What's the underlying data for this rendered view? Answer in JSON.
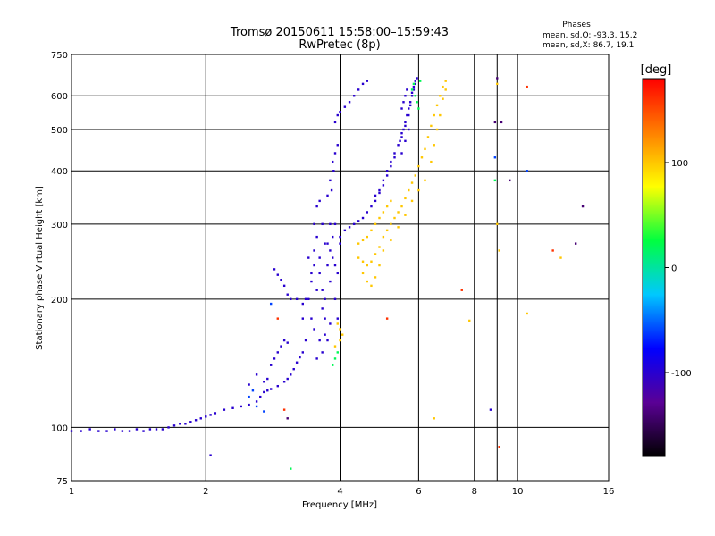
{
  "chart_data": {
    "type": "scatter",
    "title": "Tromsø 20150611 15:58:00–15:59:43",
    "subtitle": "RwPretec (8p)",
    "xlabel": "Frequency [MHz]",
    "ylabel": "Stationary phase Virtual Height [km]",
    "x_scale": "log",
    "y_scale": "log",
    "xlim": [
      1,
      16
    ],
    "ylim": [
      75,
      750
    ],
    "x_ticks": [
      "1",
      "2",
      "4",
      "6",
      "8",
      "10",
      "16"
    ],
    "x_tick_values": [
      1,
      2,
      4,
      6,
      8,
      10,
      16
    ],
    "x_minor_gridlines": [
      9
    ],
    "y_ticks": [
      "75",
      "100",
      "200",
      "300",
      "400",
      "500",
      "600",
      "750"
    ],
    "y_tick_values": [
      75,
      100,
      200,
      300,
      400,
      500,
      600,
      750
    ],
    "grid": true,
    "stats": {
      "title": "Phases",
      "line_o": "mean, sd,O: -93.3, 15.2",
      "line_x": "mean, sd,X:  86.7, 19.1"
    },
    "colorbar": {
      "label": "[deg]",
      "range": [
        -180,
        180
      ],
      "ticks": [
        "100",
        "0",
        "-100"
      ],
      "tick_values": [
        100,
        0,
        -100
      ],
      "colors": [
        "#000000",
        "#5a0095",
        "#0000ff",
        "#00c8ff",
        "#00ff40",
        "#ffff00",
        "#ff8000",
        "#ff0000"
      ]
    },
    "series": [
      {
        "phase": -100,
        "points": [
          [
            1.0,
            98
          ],
          [
            1.05,
            98
          ],
          [
            1.1,
            99
          ],
          [
            1.15,
            98
          ],
          [
            1.2,
            98
          ],
          [
            1.25,
            99
          ],
          [
            1.3,
            98
          ],
          [
            1.35,
            98
          ],
          [
            1.4,
            99
          ],
          [
            1.45,
            98
          ],
          [
            1.5,
            99
          ],
          [
            1.55,
            99
          ],
          [
            1.6,
            99
          ],
          [
            1.65,
            100
          ],
          [
            1.7,
            101
          ],
          [
            1.75,
            102
          ],
          [
            1.8,
            102
          ],
          [
            1.85,
            103
          ],
          [
            1.9,
            104
          ],
          [
            1.95,
            105
          ],
          [
            2.0,
            106
          ],
          [
            2.05,
            107
          ],
          [
            2.1,
            108
          ],
          [
            2.2,
            110
          ],
          [
            2.3,
            111
          ],
          [
            2.4,
            112
          ],
          [
            2.5,
            113
          ],
          [
            2.6,
            115
          ],
          [
            2.65,
            118
          ],
          [
            2.7,
            121
          ],
          [
            2.75,
            122
          ],
          [
            2.8,
            123
          ],
          [
            2.9,
            125
          ],
          [
            3.0,
            128
          ],
          [
            3.05,
            130
          ],
          [
            3.1,
            133
          ],
          [
            3.15,
            137
          ],
          [
            3.2,
            142
          ],
          [
            3.25,
            146
          ],
          [
            3.3,
            150
          ],
          [
            2.9,
            150
          ],
          [
            2.95,
            155
          ],
          [
            3.0,
            160
          ],
          [
            3.05,
            158
          ],
          [
            2.85,
            145
          ],
          [
            2.8,
            140
          ],
          [
            2.75,
            130
          ],
          [
            2.7,
            128
          ],
          [
            2.6,
            133
          ],
          [
            2.5,
            126
          ],
          [
            3.4,
            200
          ],
          [
            3.45,
            220
          ],
          [
            3.5,
            260
          ],
          [
            3.5,
            300
          ],
          [
            3.55,
            330
          ],
          [
            3.55,
            280
          ],
          [
            3.6,
            250
          ],
          [
            3.6,
            230
          ],
          [
            3.65,
            210
          ],
          [
            3.65,
            190
          ],
          [
            3.7,
            180
          ],
          [
            3.7,
            200
          ],
          [
            3.75,
            240
          ],
          [
            3.75,
            270
          ],
          [
            3.8,
            300
          ],
          [
            3.8,
            220
          ],
          [
            3.85,
            250
          ],
          [
            3.85,
            280
          ],
          [
            3.9,
            300
          ],
          [
            3.9,
            200
          ],
          [
            3.95,
            230
          ],
          [
            3.95,
            180
          ],
          [
            3.6,
            160
          ],
          [
            3.65,
            150
          ],
          [
            3.55,
            145
          ],
          [
            3.5,
            170
          ],
          [
            3.45,
            180
          ],
          [
            3.7,
            165
          ],
          [
            3.8,
            175
          ],
          [
            3.75,
            160
          ],
          [
            3.6,
            340
          ],
          [
            3.65,
            300
          ],
          [
            3.7,
            270
          ],
          [
            3.8,
            260
          ],
          [
            3.5,
            240
          ],
          [
            3.55,
            210
          ],
          [
            3.45,
            230
          ],
          [
            3.4,
            250
          ],
          [
            3.35,
            200
          ],
          [
            3.3,
            180
          ],
          [
            3.35,
            160
          ],
          [
            3.9,
            240
          ],
          [
            4.0,
            270
          ],
          [
            3.75,
            350
          ],
          [
            3.8,
            380
          ],
          [
            3.85,
            420
          ],
          [
            3.9,
            440
          ],
          [
            3.95,
            460
          ],
          [
            3.87,
            400
          ],
          [
            3.83,
            360
          ],
          [
            3.9,
            520
          ],
          [
            3.95,
            540
          ],
          [
            4.0,
            550
          ],
          [
            4.1,
            565
          ],
          [
            4.2,
            580
          ],
          [
            4.3,
            600
          ],
          [
            4.4,
            620
          ],
          [
            4.5,
            640
          ],
          [
            4.6,
            650
          ],
          [
            4.0,
            280
          ],
          [
            4.1,
            290
          ],
          [
            4.2,
            295
          ],
          [
            4.3,
            300
          ],
          [
            4.4,
            305
          ],
          [
            4.5,
            310
          ],
          [
            4.6,
            320
          ],
          [
            4.7,
            330
          ],
          [
            4.8,
            340
          ],
          [
            4.9,
            355
          ],
          [
            5.0,
            370
          ],
          [
            5.1,
            390
          ],
          [
            5.2,
            410
          ],
          [
            5.3,
            430
          ],
          [
            5.4,
            460
          ],
          [
            5.5,
            480
          ],
          [
            5.55,
            500
          ],
          [
            5.6,
            520
          ],
          [
            5.65,
            540
          ],
          [
            5.7,
            560
          ],
          [
            5.75,
            580
          ],
          [
            5.8,
            600
          ],
          [
            5.85,
            620
          ],
          [
            5.9,
            640
          ],
          [
            5.95,
            660
          ],
          [
            4.8,
            350
          ],
          [
            4.9,
            360
          ],
          [
            5.0,
            380
          ],
          [
            5.1,
            400
          ],
          [
            5.2,
            420
          ],
          [
            5.3,
            440
          ],
          [
            5.45,
            470
          ],
          [
            5.5,
            490
          ],
          [
            5.6,
            510
          ],
          [
            5.7,
            540
          ],
          [
            5.75,
            570
          ],
          [
            5.8,
            610
          ],
          [
            5.85,
            630
          ],
          [
            5.9,
            650
          ],
          [
            5.5,
            440
          ],
          [
            5.6,
            470
          ],
          [
            5.7,
            500
          ],
          [
            5.65,
            620
          ],
          [
            5.55,
            580
          ],
          [
            5.6,
            600
          ],
          [
            5.5,
            560
          ],
          [
            2.85,
            235
          ],
          [
            2.9,
            228
          ],
          [
            2.95,
            222
          ],
          [
            3.0,
            215
          ],
          [
            3.05,
            205
          ],
          [
            3.1,
            200
          ],
          [
            3.2,
            200
          ],
          [
            3.3,
            195
          ],
          [
            8.7,
            110
          ],
          [
            2.05,
            86
          ]
        ]
      },
      {
        "phase": 100,
        "points": [
          [
            4.4,
            250
          ],
          [
            4.5,
            245
          ],
          [
            4.6,
            240
          ],
          [
            4.7,
            245
          ],
          [
            4.8,
            255
          ],
          [
            4.9,
            265
          ],
          [
            5.0,
            280
          ],
          [
            5.1,
            290
          ],
          [
            5.2,
            300
          ],
          [
            5.3,
            310
          ],
          [
            5.4,
            320
          ],
          [
            5.5,
            330
          ],
          [
            5.6,
            345
          ],
          [
            5.7,
            360
          ],
          [
            5.8,
            375
          ],
          [
            5.9,
            390
          ],
          [
            6.0,
            410
          ],
          [
            6.1,
            430
          ],
          [
            6.2,
            450
          ],
          [
            6.3,
            480
          ],
          [
            6.4,
            510
          ],
          [
            6.5,
            540
          ],
          [
            6.6,
            570
          ],
          [
            6.7,
            600
          ],
          [
            6.8,
            630
          ],
          [
            6.9,
            650
          ],
          [
            4.5,
            230
          ],
          [
            4.6,
            220
          ],
          [
            4.7,
            215
          ],
          [
            4.8,
            225
          ],
          [
            4.9,
            240
          ],
          [
            5.0,
            260
          ],
          [
            5.2,
            275
          ],
          [
            5.4,
            295
          ],
          [
            5.6,
            315
          ],
          [
            5.8,
            340
          ],
          [
            6.0,
            360
          ],
          [
            6.2,
            380
          ],
          [
            6.4,
            420
          ],
          [
            6.5,
            460
          ],
          [
            6.6,
            500
          ],
          [
            6.7,
            540
          ],
          [
            6.8,
            590
          ],
          [
            6.9,
            620
          ],
          [
            4.4,
            270
          ],
          [
            4.5,
            275
          ],
          [
            4.6,
            280
          ],
          [
            4.7,
            290
          ],
          [
            4.8,
            300
          ],
          [
            4.9,
            310
          ],
          [
            5.0,
            320
          ],
          [
            5.1,
            330
          ],
          [
            5.2,
            340
          ],
          [
            4.0,
            160
          ],
          [
            4.0,
            170
          ],
          [
            4.05,
            165
          ],
          [
            3.95,
            175
          ],
          [
            3.9,
            155
          ],
          [
            9.0,
            640
          ],
          [
            9.1,
            260
          ],
          [
            10.5,
            185
          ],
          [
            9.0,
            300
          ],
          [
            12.5,
            250
          ],
          [
            6.5,
            105
          ],
          [
            7.8,
            178
          ]
        ]
      },
      {
        "phase": 20,
        "points": [
          [
            5.8,
            620
          ],
          [
            5.85,
            640
          ],
          [
            5.9,
            600
          ],
          [
            5.95,
            580
          ],
          [
            6.0,
            560
          ],
          [
            6.05,
            650
          ],
          [
            3.9,
            145
          ],
          [
            3.85,
            140
          ],
          [
            3.95,
            150
          ],
          [
            8.9,
            380
          ],
          [
            3.1,
            80
          ]
        ]
      },
      {
        "phase": -60,
        "points": [
          [
            2.5,
            118
          ],
          [
            2.6,
            112
          ],
          [
            2.7,
            109
          ],
          [
            2.55,
            122
          ],
          [
            10.5,
            400
          ],
          [
            8.9,
            430
          ],
          [
            2.8,
            195
          ]
        ]
      },
      {
        "phase": 160,
        "points": [
          [
            3.0,
            110
          ],
          [
            10.5,
            630
          ],
          [
            12.0,
            260
          ],
          [
            7.5,
            210
          ],
          [
            9.1,
            90
          ],
          [
            5.1,
            180
          ],
          [
            2.9,
            180
          ]
        ]
      },
      {
        "phase": -140,
        "points": [
          [
            9.0,
            660
          ],
          [
            9.2,
            520
          ],
          [
            8.9,
            520
          ],
          [
            9.6,
            380
          ],
          [
            14.0,
            330
          ],
          [
            13.5,
            270
          ],
          [
            3.05,
            105
          ]
        ]
      }
    ]
  }
}
